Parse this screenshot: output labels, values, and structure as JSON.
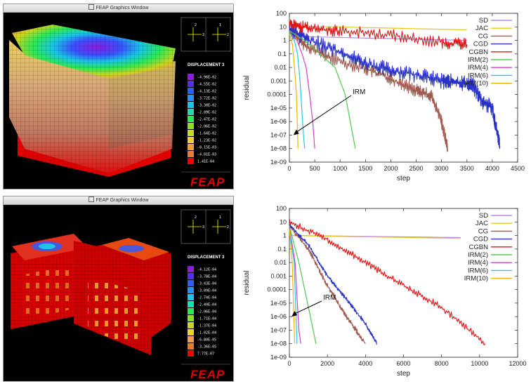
{
  "windows": [
    {
      "title": "FEAP Graphics Window",
      "legend_title": "DISPLACEMENT 3",
      "legend_values": [
        "-4.96E-02",
        "-4.55E-02",
        "-4.13E-02",
        "-3.72E-02",
        "-3.30E-02",
        "-2.89E-02",
        "-2.47E-02",
        "-2.06E-02",
        "-1.64E-02",
        "-1.23E-02",
        "-8.15E-03",
        "-4.01E-03",
        "1.41E-04"
      ],
      "legend_colors": [
        "#8a1de0",
        "#5330f0",
        "#2d5cff",
        "#1e94ff",
        "#18c6e8",
        "#1ae0b0",
        "#2ae858",
        "#8ae020",
        "#c8d820",
        "#f0d030",
        "#f0a040",
        "#f07828",
        "#f00000"
      ],
      "brand": "FEAP",
      "axis_labels": [
        "2",
        "3",
        "1",
        "2"
      ]
    },
    {
      "title": "FEAP Graphics Window",
      "legend_title": "DISPLACEMENT 3",
      "legend_values": [
        "-4.12E-04",
        "-3.78E-04",
        "-3.43E-04",
        "-3.09E-04",
        "-2.74E-04",
        "-2.40E-04",
        "-2.06E-04",
        "-1.71E-04",
        "-1.37E-04",
        "-1.02E-04",
        "-6.80E-05",
        "-3.36E-05",
        "7.77E-07"
      ],
      "legend_colors": [
        "#8a1de0",
        "#5330f0",
        "#2d5cff",
        "#1e94ff",
        "#18c6e8",
        "#1ae0b0",
        "#2ae858",
        "#8ae020",
        "#c8d820",
        "#f0d030",
        "#f0a040",
        "#f07828",
        "#f00000"
      ],
      "brand": "FEAP",
      "axis_labels": [
        "2",
        "3",
        "1",
        "2"
      ]
    }
  ],
  "chart_data": [
    {
      "type": "line",
      "xlabel": "step",
      "ylabel": "residual",
      "x_ticks": [
        "0",
        "500",
        "1000",
        "1500",
        "2000",
        "2500",
        "3000",
        "3500",
        "4000",
        "4500"
      ],
      "y_ticks": [
        "100",
        "10",
        "1",
        "0.1",
        "0.01",
        "0.001",
        "0.0001",
        "1e-05",
        "1e-06",
        "1e-07",
        "1e-08",
        "1e-09"
      ],
      "xlim": [
        0,
        4500
      ],
      "ylim_log10": [
        -9,
        2
      ],
      "log_y": true,
      "legend_position": "top-right",
      "annotation": "IRM",
      "series": [
        {
          "name": "SD",
          "color": "#b48ce0",
          "points": [
            [
              0,
              2
            ],
            [
              3500,
              1
            ]
          ],
          "noise": 0
        },
        {
          "name": "JAC",
          "color": "#e8c81e",
          "points": [
            [
              0,
              12
            ],
            [
              3500,
              6
            ]
          ],
          "noise": 0
        },
        {
          "name": "CG",
          "color": "#a05a50",
          "points": [
            [
              0,
              5
            ],
            [
              300,
              0.5
            ],
            [
              800,
              0.05
            ],
            [
              1500,
              0.008
            ],
            [
              2000,
              0.0015
            ],
            [
              2500,
              0.0002
            ],
            [
              2800,
              8e-05
            ],
            [
              3000,
              1e-06
            ],
            [
              3120,
              1e-08
            ]
          ],
          "noise": 0.5
        },
        {
          "name": "CGD",
          "color": "#2832c8",
          "points": [
            [
              0,
              8
            ],
            [
              400,
              1
            ],
            [
              1000,
              0.15
            ],
            [
              1500,
              0.02
            ],
            [
              2000,
              0.006
            ],
            [
              2500,
              0.003
            ],
            [
              3000,
              0.001
            ],
            [
              3300,
              0.0008
            ],
            [
              3600,
              0.0006
            ],
            [
              3800,
              3e-05
            ],
            [
              4000,
              1e-05
            ],
            [
              4150,
              1.5e-08
            ]
          ],
          "noise": 0.6
        },
        {
          "name": "CGBN",
          "color": "#e01414",
          "points": [
            [
              0,
              15
            ],
            [
              400,
              8
            ],
            [
              1000,
              5
            ],
            [
              2000,
              2.5
            ],
            [
              3000,
              0.7
            ],
            [
              3500,
              0.5
            ]
          ],
          "noise": 0.45
        },
        {
          "name": "IRM(2)",
          "color": "#50c850",
          "points": [
            [
              0,
              5
            ],
            [
              300,
              1
            ],
            [
              600,
              0.1
            ],
            [
              900,
              0.01
            ],
            [
              1000,
              0.001
            ],
            [
              1100,
              0.0001
            ],
            [
              1300,
              1e-08
            ]
          ],
          "noise": 0
        },
        {
          "name": "IRM(4)",
          "color": "#d040d0",
          "points": [
            [
              0,
              4
            ],
            [
              150,
              1
            ],
            [
              250,
              0.1
            ],
            [
              330,
              0.01
            ],
            [
              400,
              0.0001
            ],
            [
              460,
              1e-06
            ],
            [
              500,
              1e-08
            ]
          ],
          "noise": 0
        },
        {
          "name": "IRM(6)",
          "color": "#28c8e0",
          "points": [
            [
              0,
              4
            ],
            [
              100,
              1
            ],
            [
              160,
              0.1
            ],
            [
              210,
              0.001
            ],
            [
              260,
              1e-06
            ],
            [
              300,
              1e-08
            ]
          ],
          "noise": 0
        },
        {
          "name": "IRM(10)",
          "color": "#f0b400",
          "points": [
            [
              0,
              3
            ],
            [
              60,
              0.5
            ],
            [
              100,
              0.01
            ],
            [
              140,
              0.0001
            ],
            [
              170,
              1e-08
            ]
          ],
          "noise": 0
        }
      ]
    },
    {
      "type": "line",
      "xlabel": "step",
      "ylabel": "residual",
      "x_ticks": [
        "0",
        "2000",
        "4000",
        "6000",
        "8000",
        "10000",
        "12000"
      ],
      "y_ticks": [
        "100",
        "10",
        "1",
        "0.1",
        "0.01",
        "0.001",
        "0.0001",
        "1e-05",
        "1e-06",
        "1e-07",
        "1e-08",
        "1e-09"
      ],
      "xlim": [
        0,
        12000
      ],
      "ylim_log10": [
        -9,
        2
      ],
      "log_y": true,
      "legend_position": "top-right",
      "annotation": "IRM",
      "series": [
        {
          "name": "SD",
          "color": "#b48ce0",
          "points": [
            [
              0,
              1
            ],
            [
              9000,
              0.7
            ]
          ],
          "noise": 0
        },
        {
          "name": "JAC",
          "color": "#e8c81e",
          "points": [
            [
              0,
              1
            ],
            [
              9000,
              0.6
            ]
          ],
          "noise": 0
        },
        {
          "name": "CG",
          "color": "#a05a50",
          "points": [
            [
              0,
              5
            ],
            [
              1000,
              0.1
            ],
            [
              2000,
              0.0002
            ],
            [
              3000,
              1e-06
            ],
            [
              4000,
              1e-08
            ]
          ],
          "noise": 0.2
        },
        {
          "name": "CGD",
          "color": "#2832c8",
          "points": [
            [
              0,
              6
            ],
            [
              1000,
              0.2
            ],
            [
              2000,
              0.001
            ],
            [
              3000,
              2e-05
            ],
            [
              4000,
              3e-07
            ],
            [
              4600,
              1e-08
            ]
          ],
          "noise": 0.15
        },
        {
          "name": "CGBN",
          "color": "#e01414",
          "points": [
            [
              0,
              10
            ],
            [
              2000,
              0.5
            ],
            [
              4000,
              0.01
            ],
            [
              6000,
              0.0002
            ],
            [
              8000,
              5e-06
            ],
            [
              10300,
              1e-08
            ]
          ],
          "noise": 0.25
        },
        {
          "name": "IRM(2)",
          "color": "#50c850",
          "points": [
            [
              0,
              5
            ],
            [
              500,
              0.01
            ],
            [
              1000,
              5e-06
            ],
            [
              1400,
              1e-08
            ]
          ],
          "noise": 0
        },
        {
          "name": "IRM(4)",
          "color": "#d040d0",
          "points": [
            [
              0,
              4
            ],
            [
              300,
              0.01
            ],
            [
              500,
              1e-07
            ],
            [
              600,
              1e-08
            ]
          ],
          "noise": 0
        },
        {
          "name": "IRM(6)",
          "color": "#28c8e0",
          "points": [
            [
              0,
              3
            ],
            [
              250,
              0.01
            ],
            [
              400,
              1e-08
            ]
          ],
          "noise": 0
        },
        {
          "name": "IRM(10)",
          "color": "#f0b400",
          "points": [
            [
              0,
              3
            ],
            [
              150,
              0.01
            ],
            [
              280,
              1e-08
            ]
          ],
          "noise": 0
        }
      ]
    }
  ]
}
